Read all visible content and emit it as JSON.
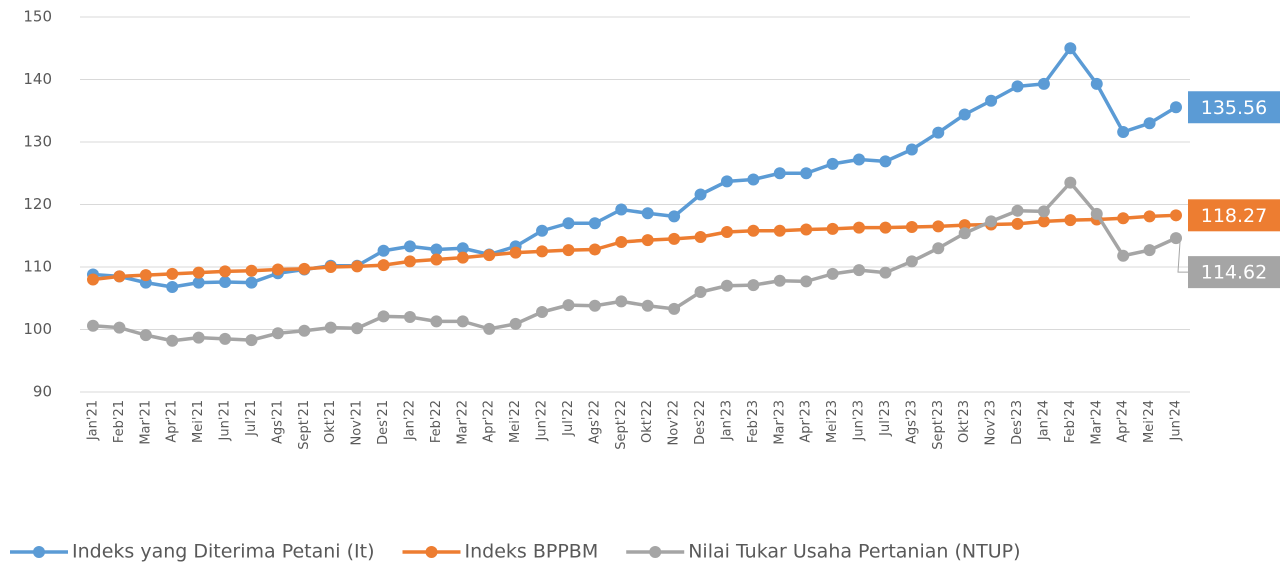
{
  "chart_data": {
    "type": "line",
    "categories": [
      "Jan'21",
      "Feb'21",
      "Mar'21",
      "Apr'21",
      "Mei'21",
      "Jun'21",
      "Jul'21",
      "Ags'21",
      "Sept'21",
      "Okt'21",
      "Nov'21",
      "Des'21",
      "Jan'22",
      "Feb'22",
      "Mar'22",
      "Apr'22",
      "Mei'22",
      "Jun'22",
      "Jul'22",
      "Ags'22",
      "Sept'22",
      "Okt'22",
      "Nov'22",
      "Des'22",
      "Jan'23",
      "Feb'23",
      "Mar'23",
      "Apr'23",
      "Mei'23",
      "Jun'23",
      "Jul'23",
      "Ags'23",
      "Sept'23",
      "Okt'23",
      "Nov'23",
      "Des'23",
      "Jan'24",
      "Feb'24",
      "Mar'24",
      "Apr'24",
      "Mei'24",
      "Jun'24"
    ],
    "series": [
      {
        "name": "Indeks yang Diterima Petani (It)",
        "color": "#5b9bd5",
        "values": [
          108.8,
          108.5,
          107.5,
          106.8,
          107.5,
          107.6,
          107.5,
          109.0,
          109.6,
          110.2,
          110.2,
          112.6,
          113.3,
          112.8,
          113.0,
          112.0,
          113.3,
          115.8,
          117.0,
          117.0,
          119.2,
          118.6,
          118.1,
          121.6,
          123.7,
          124.0,
          125.0,
          125.0,
          126.5,
          127.2,
          126.9,
          128.8,
          131.5,
          134.4,
          136.6,
          138.9,
          139.3,
          145.0,
          139.3,
          131.6,
          133.0,
          135.56
        ]
      },
      {
        "name": "Indeks BPPBM",
        "color": "#ed7d31",
        "values": [
          108.0,
          108.5,
          108.7,
          108.9,
          109.1,
          109.3,
          109.4,
          109.6,
          109.7,
          110.0,
          110.1,
          110.3,
          110.9,
          111.2,
          111.5,
          111.9,
          112.3,
          112.5,
          112.7,
          112.8,
          114.0,
          114.3,
          114.5,
          114.8,
          115.6,
          115.8,
          115.8,
          116.0,
          116.1,
          116.3,
          116.3,
          116.4,
          116.5,
          116.7,
          116.8,
          116.9,
          117.3,
          117.5,
          117.6,
          117.8,
          118.1,
          118.27
        ]
      },
      {
        "name": "Nilai Tukar Usaha Pertanian (NTUP)",
        "color": "#a5a5a5",
        "values": [
          100.6,
          100.3,
          99.1,
          98.2,
          98.7,
          98.5,
          98.3,
          99.4,
          99.8,
          100.3,
          100.2,
          102.1,
          102.0,
          101.3,
          101.3,
          100.1,
          100.9,
          102.8,
          103.9,
          103.8,
          104.5,
          103.8,
          103.3,
          106.0,
          107.0,
          107.1,
          107.8,
          107.7,
          108.9,
          109.5,
          109.1,
          110.9,
          113.0,
          115.4,
          117.3,
          119.0,
          118.9,
          123.5,
          118.5,
          111.8,
          112.7,
          114.62
        ]
      }
    ],
    "ylim": [
      90,
      150
    ],
    "yticks": [
      90,
      100,
      110,
      120,
      130,
      140,
      150
    ],
    "grid": true,
    "legend": "bottom"
  }
}
